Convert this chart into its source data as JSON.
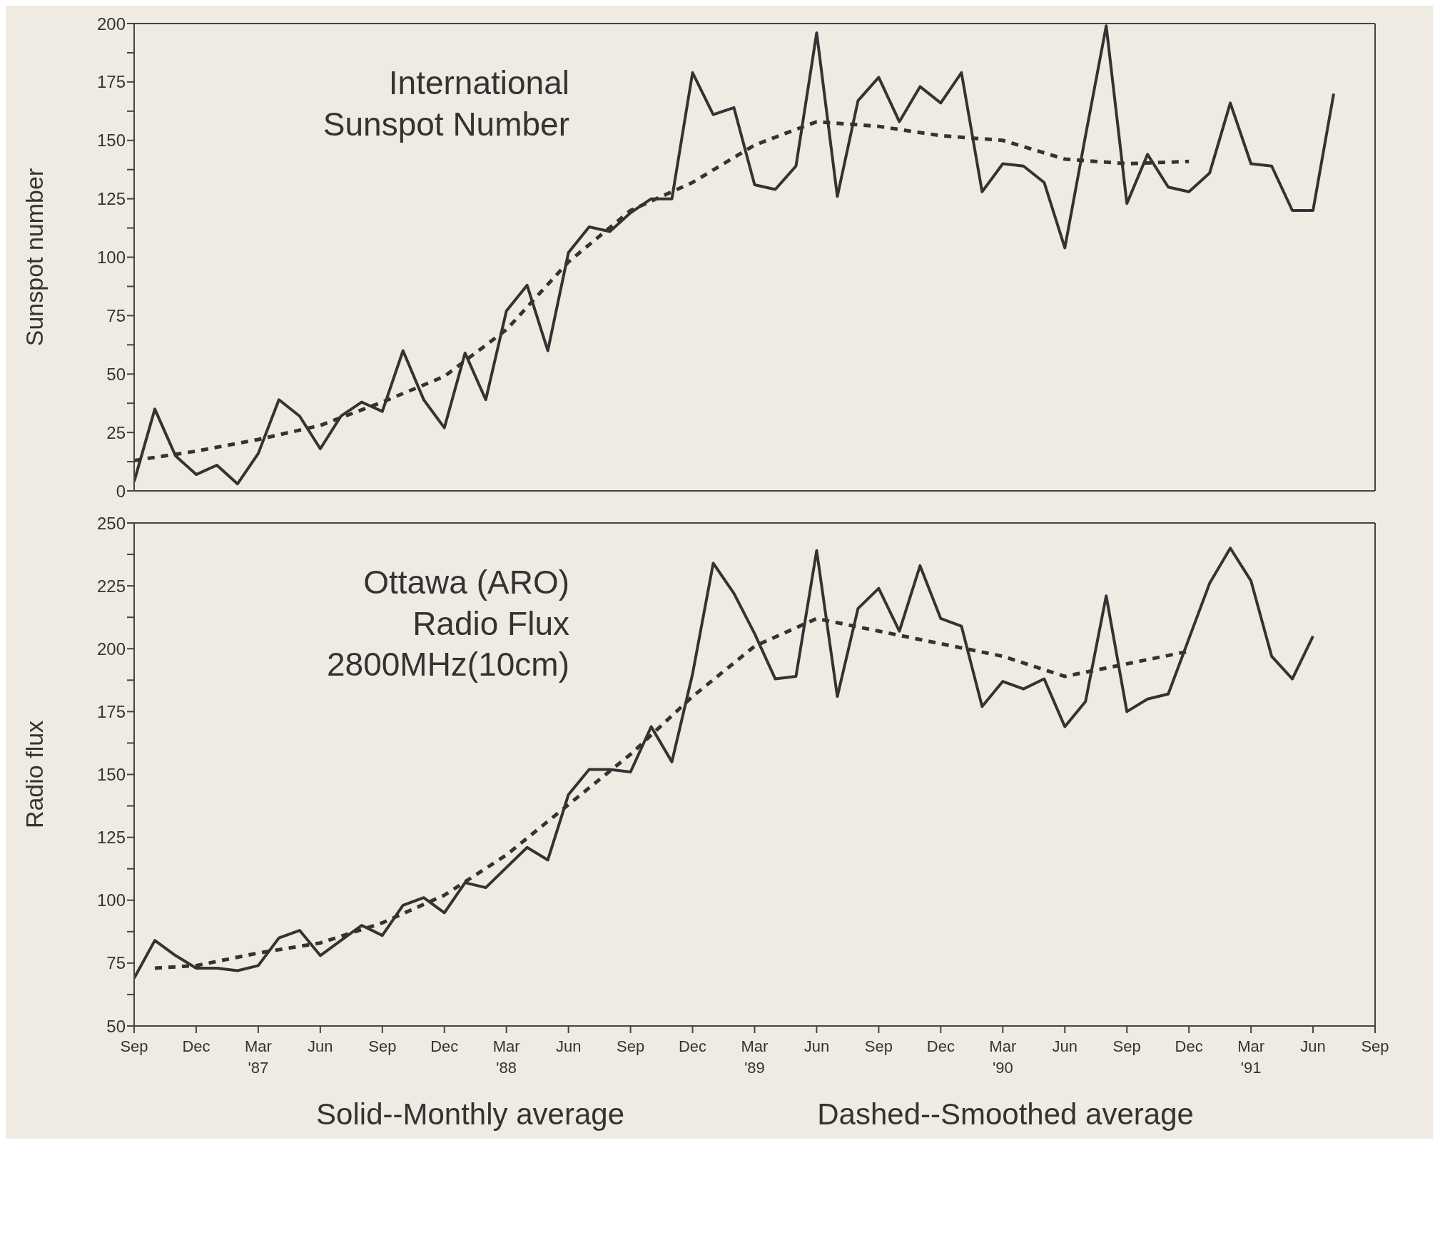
{
  "chart_data": [
    {
      "type": "line",
      "ylabel": "Sunspot number",
      "annotations": [
        "International\nSunspot Number"
      ],
      "x": [
        "1986-09",
        "1986-10",
        "1986-11",
        "1986-12",
        "1987-01",
        "1987-02",
        "1987-03",
        "1987-04",
        "1987-05",
        "1987-06",
        "1987-07",
        "1987-08",
        "1987-09",
        "1987-10",
        "1987-11",
        "1987-12",
        "1988-01",
        "1988-02",
        "1988-03",
        "1988-04",
        "1988-05",
        "1988-06",
        "1988-07",
        "1988-08",
        "1988-09",
        "1988-10",
        "1988-11",
        "1988-12",
        "1989-01",
        "1989-02",
        "1989-03",
        "1989-04",
        "1989-05",
        "1989-06",
        "1989-07",
        "1989-08",
        "1989-09",
        "1989-10",
        "1989-11",
        "1989-12",
        "1990-01",
        "1990-02",
        "1990-03",
        "1990-04",
        "1990-05",
        "1990-06",
        "1990-07",
        "1990-08",
        "1990-09",
        "1990-10",
        "1990-11",
        "1990-12",
        "1991-01",
        "1991-02",
        "1991-03",
        "1991-04",
        "1991-05",
        "1991-06",
        "1991-07"
      ],
      "series": [
        {
          "color": "#333333",
          "line_style": "solid",
          "values": [
            4,
            35,
            15,
            7,
            11,
            3,
            16,
            39,
            32,
            18,
            32,
            38,
            34,
            60,
            39,
            27,
            59,
            39,
            77,
            88,
            60,
            102,
            113,
            111,
            119,
            125,
            125,
            179,
            161,
            164,
            131,
            129,
            139,
            196,
            126,
            167,
            177,
            158,
            173,
            166,
            179,
            128,
            140,
            139,
            132,
            104,
            152,
            199,
            123,
            144,
            130,
            128,
            136,
            166,
            140,
            139,
            120,
            120,
            170
          ]
        },
        {
          "color": "#333333",
          "line_style": "dashed",
          "x": [
            "1986-09",
            "1986-12",
            "1987-03",
            "1987-06",
            "1987-09",
            "1987-12",
            "1988-03",
            "1988-06",
            "1988-09",
            "1988-12",
            "1989-03",
            "1989-06",
            "1989-09",
            "1989-12",
            "1990-03",
            "1990-06",
            "1990-09",
            "1990-12"
          ],
          "values": [
            13,
            17,
            22,
            28,
            38,
            49,
            69,
            98,
            120,
            132,
            148,
            158,
            156,
            152,
            150,
            142,
            140,
            141
          ]
        }
      ],
      "xlim": [
        "1986-09",
        "1991-09"
      ],
      "xticks": [
        {
          "value": "1986-09",
          "label": null
        },
        {
          "value": "1986-12",
          "label": null
        },
        {
          "value": "1987-03",
          "label": null
        },
        {
          "value": "1987-06",
          "label": null
        },
        {
          "value": "1987-09",
          "label": null
        },
        {
          "value": "1987-12",
          "label": null
        },
        {
          "value": "1988-03",
          "label": null
        },
        {
          "value": "1988-06",
          "label": null
        },
        {
          "value": "1988-09",
          "label": null
        },
        {
          "value": "1988-12",
          "label": null
        },
        {
          "value": "1989-03",
          "label": null
        },
        {
          "value": "1989-06",
          "label": null
        },
        {
          "value": "1989-09",
          "label": null
        },
        {
          "value": "1989-12",
          "label": null
        },
        {
          "value": "1990-03",
          "label": null
        },
        {
          "value": "1990-06",
          "label": null
        },
        {
          "value": "1990-09",
          "label": null
        },
        {
          "value": "1990-12",
          "label": null
        },
        {
          "value": "1991-03",
          "label": null
        },
        {
          "value": "1991-06",
          "label": null
        },
        {
          "value": "1991-09",
          "label": null
        }
      ],
      "ylim": [
        0,
        200
      ],
      "yticks": [
        0,
        {
          "value": 12.5,
          "label": null
        },
        25,
        {
          "value": 37.5,
          "label": null
        },
        50,
        {
          "value": 62.5,
          "label": null
        },
        75,
        {
          "value": 87.5,
          "label": null
        },
        100,
        {
          "value": 112.5,
          "label": null
        },
        125,
        {
          "value": 137.5,
          "label": null
        },
        150,
        {
          "value": 162.5,
          "label": null
        },
        175,
        {
          "value": 187.5,
          "label": null
        },
        200
      ],
      "tick_labels": "y",
      "grid": false,
      "legend": false,
      "marker": "none"
    },
    {
      "type": "line",
      "ylabel": "Radio flux",
      "annotations": [
        "Ottawa (ARO)\nRadio Flux\n2800MHz(10cm)",
        "Solid--Monthly average",
        "Dashed--Smoothed average"
      ],
      "x": [
        "1986-09",
        "1986-10",
        "1986-11",
        "1986-12",
        "1987-01",
        "1987-02",
        "1987-03",
        "1987-04",
        "1987-05",
        "1987-06",
        "1987-07",
        "1987-08",
        "1987-09",
        "1987-10",
        "1987-11",
        "1987-12",
        "1988-01",
        "1988-02",
        "1988-03",
        "1988-04",
        "1988-05",
        "1988-06",
        "1988-07",
        "1988-08",
        "1988-09",
        "1988-10",
        "1988-11",
        "1988-12",
        "1989-01",
        "1989-02",
        "1989-03",
        "1989-04",
        "1989-05",
        "1989-06",
        "1989-07",
        "1989-08",
        "1989-09",
        "1989-10",
        "1989-11",
        "1989-12",
        "1990-01",
        "1990-02",
        "1990-03",
        "1990-04",
        "1990-05",
        "1990-06",
        "1990-07",
        "1990-08",
        "1990-09",
        "1990-10",
        "1990-11",
        "1990-12",
        "1991-01",
        "1991-02",
        "1991-03",
        "1991-04",
        "1991-05",
        "1991-06"
      ],
      "series": [
        {
          "color": "#333333",
          "line_style": "solid",
          "values": [
            69,
            84,
            78,
            73,
            73,
            72,
            74,
            85,
            88,
            78,
            84,
            90,
            86,
            98,
            101,
            95,
            107,
            105,
            113,
            121,
            116,
            142,
            152,
            152,
            151,
            169,
            155,
            190,
            234,
            222,
            206,
            188,
            189,
            239,
            181,
            216,
            224,
            207,
            233,
            212,
            209,
            177,
            187,
            184,
            188,
            169,
            179,
            221,
            175,
            180,
            182,
            204,
            226,
            240,
            227,
            197,
            188,
            205
          ]
        },
        {
          "color": "#333333",
          "line_style": "dashed",
          "x": [
            "1986-10",
            "1986-12",
            "1987-03",
            "1987-06",
            "1987-09",
            "1987-12",
            "1988-03",
            "1988-06",
            "1988-09",
            "1988-12",
            "1989-03",
            "1989-06",
            "1989-09",
            "1989-12",
            "1990-03",
            "1990-06",
            "1990-09",
            "1990-12"
          ],
          "values": [
            73,
            74,
            79,
            83,
            91,
            102,
            118,
            138,
            158,
            181,
            201,
            212,
            207,
            202,
            197,
            189,
            194,
            199
          ]
        }
      ],
      "xlim": [
        "1986-09",
        "1991-09"
      ],
      "xticks": [
        {
          "value": "1986-09",
          "label": "Sep"
        },
        {
          "value": "1986-12",
          "label": "Dec"
        },
        {
          "value": "1987-03",
          "label": "Mar\n'87"
        },
        {
          "value": "1987-06",
          "label": "Jun"
        },
        {
          "value": "1987-09",
          "label": "Sep"
        },
        {
          "value": "1987-12",
          "label": "Dec"
        },
        {
          "value": "1988-03",
          "label": "Mar\n'88"
        },
        {
          "value": "1988-06",
          "label": "Jun"
        },
        {
          "value": "1988-09",
          "label": "Sep"
        },
        {
          "value": "1988-12",
          "label": "Dec"
        },
        {
          "value": "1989-03",
          "label": "Mar\n'89"
        },
        {
          "value": "1989-06",
          "label": "Jun"
        },
        {
          "value": "1989-09",
          "label": "Sep"
        },
        {
          "value": "1989-12",
          "label": "Dec"
        },
        {
          "value": "1990-03",
          "label": "Mar\n'90"
        },
        {
          "value": "1990-06",
          "label": "Jun"
        },
        {
          "value": "1990-09",
          "label": "Sep"
        },
        {
          "value": "1990-12",
          "label": "Dec"
        },
        {
          "value": "1991-03",
          "label": "Mar\n'91"
        },
        {
          "value": "1991-06",
          "label": "Jun"
        },
        {
          "value": "1991-09",
          "label": "Sep"
        }
      ],
      "ylim": [
        50,
        250
      ],
      "yticks": [
        50,
        {
          "value": 62.5,
          "label": null
        },
        75,
        {
          "value": 87.5,
          "label": null
        },
        100,
        {
          "value": 112.5,
          "label": null
        },
        125,
        {
          "value": 137.5,
          "label": null
        },
        150,
        {
          "value": 162.5,
          "label": null
        },
        175,
        {
          "value": 187.5,
          "label": null
        },
        200,
        {
          "value": 212.5,
          "label": null
        },
        225,
        {
          "value": 237.5,
          "label": null
        },
        250
      ],
      "grid": false,
      "legend": false,
      "marker": "none"
    }
  ]
}
